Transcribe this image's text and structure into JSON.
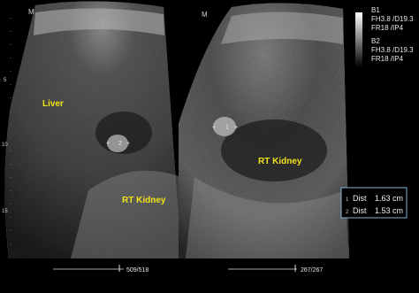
{
  "logo": "M",
  "left_panel": {
    "labels": [
      "Liver",
      "RT Kidney"
    ],
    "caliper": "2",
    "frame": "509/518",
    "depth_ticks": [
      "5",
      "10",
      "15"
    ]
  },
  "right_panel": {
    "labels": [
      "RT Kidney"
    ],
    "caliper": "1",
    "frame": "267/267"
  },
  "settings": [
    {
      "name": "B1",
      "lines": [
        "FH3.8 /D19.3",
        "FR18 /IP4"
      ]
    },
    {
      "name": "B2",
      "lines": [
        "FH3.8 /D19.3",
        "FR18 /IP4"
      ]
    }
  ],
  "measurements": [
    {
      "index": "1",
      "label": "Dist",
      "value": "1.63 cm"
    },
    {
      "index": "2",
      "label": "Dist",
      "value": "1.53 cm"
    }
  ]
}
